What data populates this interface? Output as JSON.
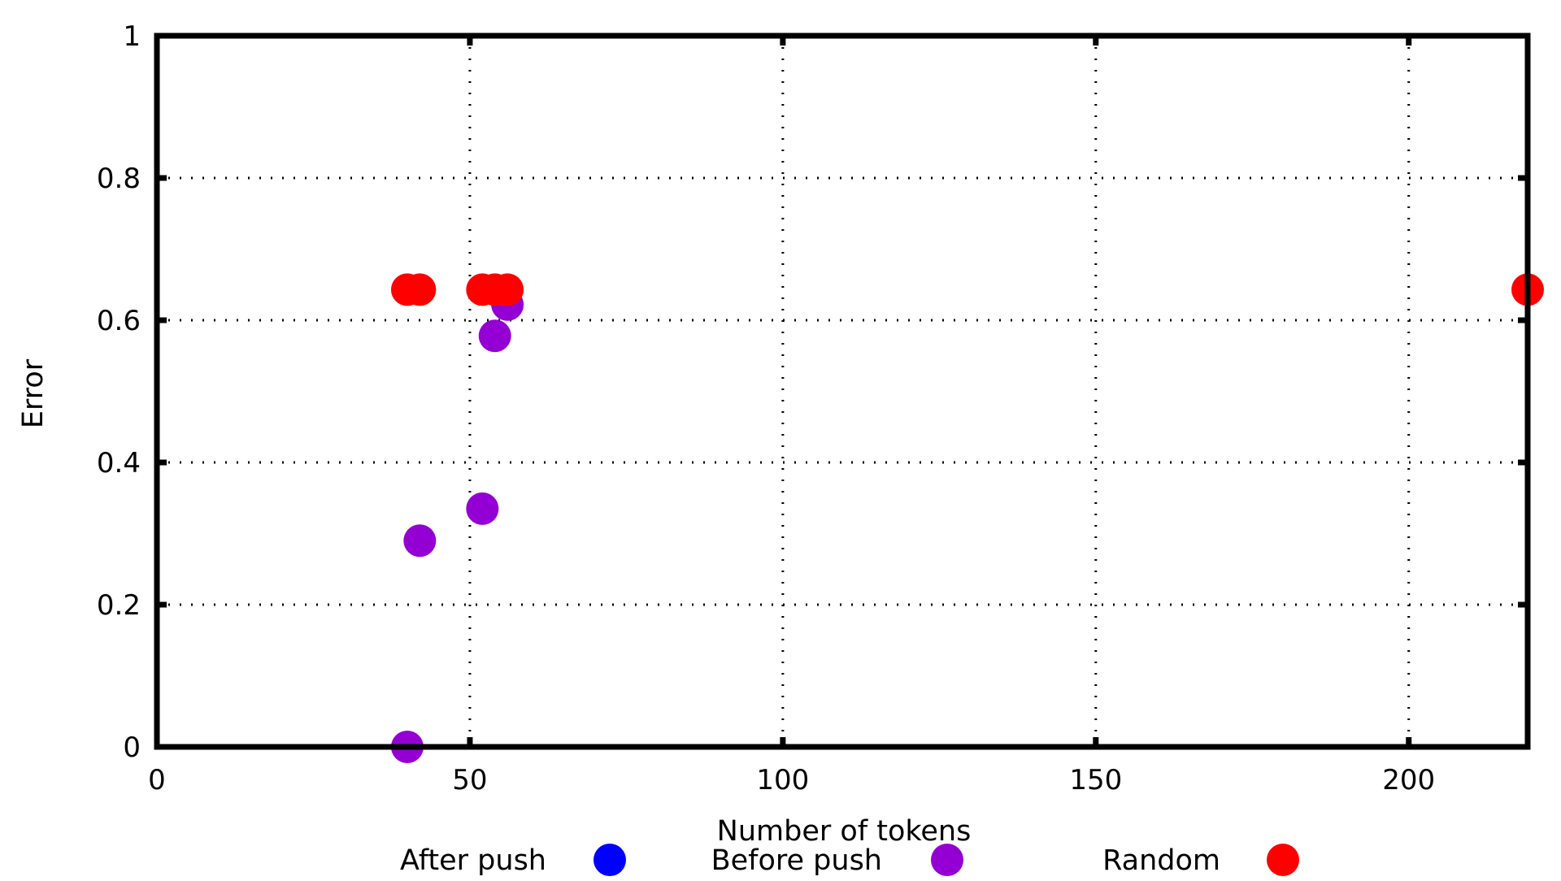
{
  "chart_data": {
    "type": "scatter",
    "title": "",
    "xlabel": "Number of tokens",
    "ylabel": "Error",
    "xlim": [
      0,
      219
    ],
    "ylim": [
      0,
      1
    ],
    "grid": true,
    "legend_position": "bottom",
    "x_ticks": [
      {
        "value": 0,
        "label": "0"
      },
      {
        "value": 50,
        "label": "50"
      },
      {
        "value": 100,
        "label": "100"
      },
      {
        "value": 150,
        "label": "150"
      },
      {
        "value": 200,
        "label": "200"
      }
    ],
    "y_ticks": [
      {
        "value": 0,
        "label": "0"
      },
      {
        "value": 0.2,
        "label": "0.2"
      },
      {
        "value": 0.4,
        "label": "0.4"
      },
      {
        "value": 0.6,
        "label": "0.6"
      },
      {
        "value": 0.8,
        "label": "0.8"
      },
      {
        "value": 1,
        "label": "1"
      }
    ],
    "series": [
      {
        "name": "After push",
        "color": "#0000ff",
        "points": []
      },
      {
        "name": "Before push",
        "color": "#9400d3",
        "points": [
          {
            "x": 40,
            "y": 0.0
          },
          {
            "x": 42,
            "y": 0.29
          },
          {
            "x": 52,
            "y": 0.335
          },
          {
            "x": 54,
            "y": 0.578
          },
          {
            "x": 56,
            "y": 0.622
          }
        ]
      },
      {
        "name": "Random",
        "color": "#ff0000",
        "points": [
          {
            "x": 40,
            "y": 0.643
          },
          {
            "x": 42,
            "y": 0.643
          },
          {
            "x": 52,
            "y": 0.643
          },
          {
            "x": 54,
            "y": 0.643
          },
          {
            "x": 56,
            "y": 0.643
          },
          {
            "x": 219,
            "y": 0.643
          }
        ]
      }
    ]
  }
}
